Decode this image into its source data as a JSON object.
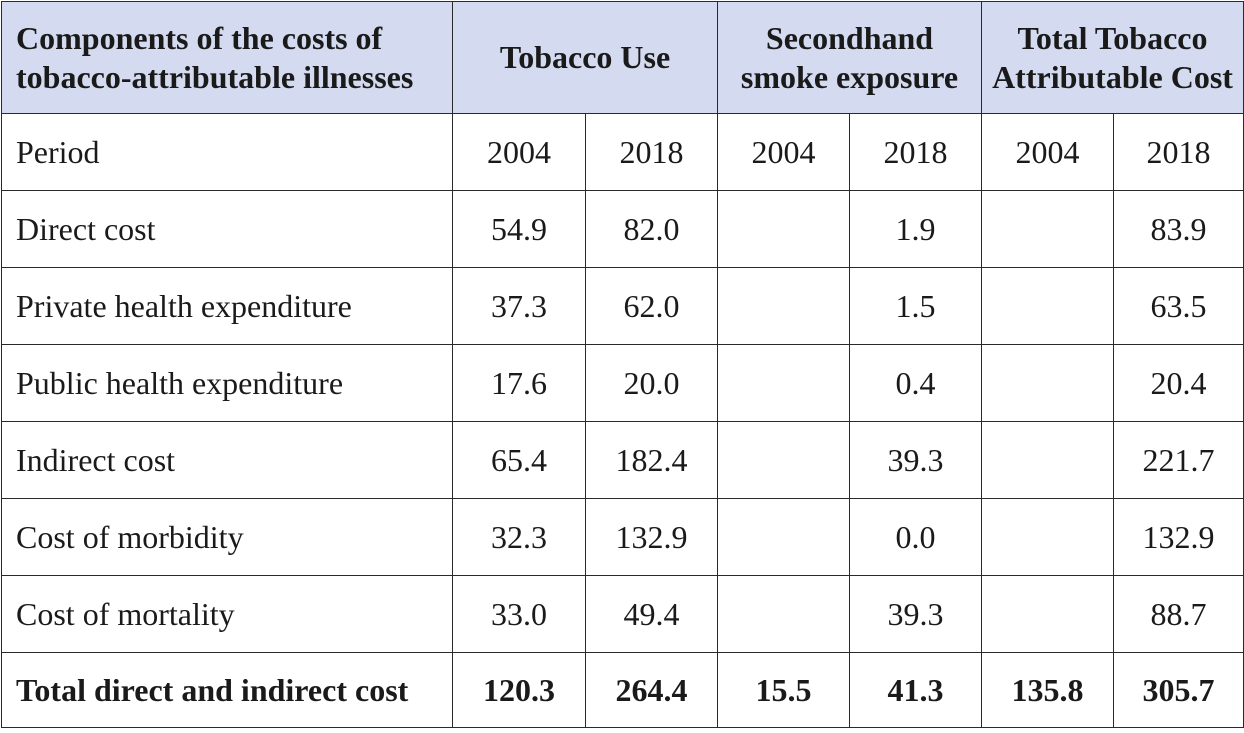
{
  "header": {
    "components_line1": "Components of the costs of",
    "components_line2": "tobacco-attributable illnesses",
    "tobacco_use": "Tobacco Use",
    "secondhand_line1": "Secondhand",
    "secondhand_line2": "smoke exposure",
    "total_line1": "Total Tobacco",
    "total_line2": "Attributable Cost"
  },
  "rows": [
    {
      "label": "Period",
      "v": [
        "2004",
        "2018",
        "2004",
        "2018",
        "2004",
        "2018"
      ]
    },
    {
      "label": "Direct cost",
      "v": [
        "54.9",
        "82.0",
        "",
        "1.9",
        "",
        "83.9"
      ]
    },
    {
      "label": "Private health expenditure",
      "v": [
        "37.3",
        "62.0",
        "",
        "1.5",
        "",
        "63.5"
      ]
    },
    {
      "label": "Public health expenditure",
      "v": [
        "17.6",
        "20.0",
        "",
        "0.4",
        "",
        "20.4"
      ]
    },
    {
      "label": "Indirect cost",
      "v": [
        "65.4",
        "182.4",
        "",
        "39.3",
        "",
        "221.7"
      ]
    },
    {
      "label": "Cost of morbidity",
      "v": [
        "32.3",
        "132.9",
        "",
        "0.0",
        "",
        "132.9"
      ]
    },
    {
      "label": "Cost of mortality",
      "v": [
        "33.0",
        "49.4",
        "",
        "39.3",
        "",
        "88.7"
      ]
    },
    {
      "label": "Total direct and indirect cost",
      "v": [
        "120.3",
        "264.4",
        "15.5",
        "41.3",
        "135.8",
        "305.7"
      ]
    }
  ]
}
